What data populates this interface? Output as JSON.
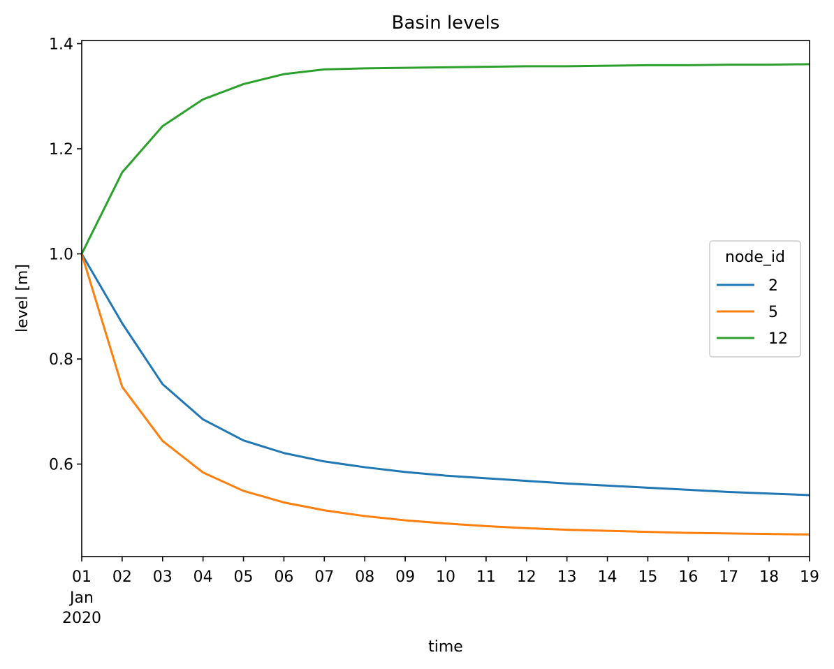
{
  "chart_data": {
    "type": "line",
    "title": "Basin levels",
    "xlabel": "time",
    "ylabel": "level [m]",
    "x": [
      "2020-01-01",
      "2020-01-02",
      "2020-01-03",
      "2020-01-04",
      "2020-01-05",
      "2020-01-06",
      "2020-01-07",
      "2020-01-08",
      "2020-01-09",
      "2020-01-10",
      "2020-01-11",
      "2020-01-12",
      "2020-01-13",
      "2020-01-14",
      "2020-01-15",
      "2020-01-16",
      "2020-01-17",
      "2020-01-18",
      "2020-01-19"
    ],
    "x_tick_labels": [
      "01",
      "02",
      "03",
      "04",
      "05",
      "06",
      "07",
      "08",
      "09",
      "10",
      "11",
      "12",
      "13",
      "14",
      "15",
      "16",
      "17",
      "18",
      "19"
    ],
    "x_tick_sublabels": [
      "Jan",
      "2020"
    ],
    "y_ticks": [
      0.6,
      0.8,
      1.0,
      1.2,
      1.4
    ],
    "y_tick_labels": [
      "0.6",
      "0.8",
      "1.0",
      "1.2",
      "1.4"
    ],
    "ylim": [
      0.424,
      1.406
    ],
    "legend": {
      "title": "node_id",
      "placement": "center-right"
    },
    "grid": false,
    "series": [
      {
        "name": "2",
        "color": "#1f77b4",
        "values": [
          1.0,
          0.868,
          0.752,
          0.685,
          0.645,
          0.621,
          0.605,
          0.594,
          0.585,
          0.578,
          0.573,
          0.568,
          0.563,
          0.559,
          0.555,
          0.551,
          0.547,
          0.544,
          0.541
        ]
      },
      {
        "name": "5",
        "color": "#ff7f0e",
        "values": [
          1.0,
          0.747,
          0.644,
          0.584,
          0.549,
          0.527,
          0.512,
          0.501,
          0.493,
          0.487,
          0.482,
          0.478,
          0.475,
          0.473,
          0.471,
          0.469,
          0.468,
          0.467,
          0.466
        ]
      },
      {
        "name": "12",
        "color": "#2ca02c",
        "values": [
          1.0,
          1.155,
          1.243,
          1.294,
          1.323,
          1.342,
          1.351,
          1.353,
          1.354,
          1.355,
          1.356,
          1.357,
          1.357,
          1.358,
          1.359,
          1.359,
          1.36,
          1.36,
          1.361
        ]
      }
    ]
  }
}
